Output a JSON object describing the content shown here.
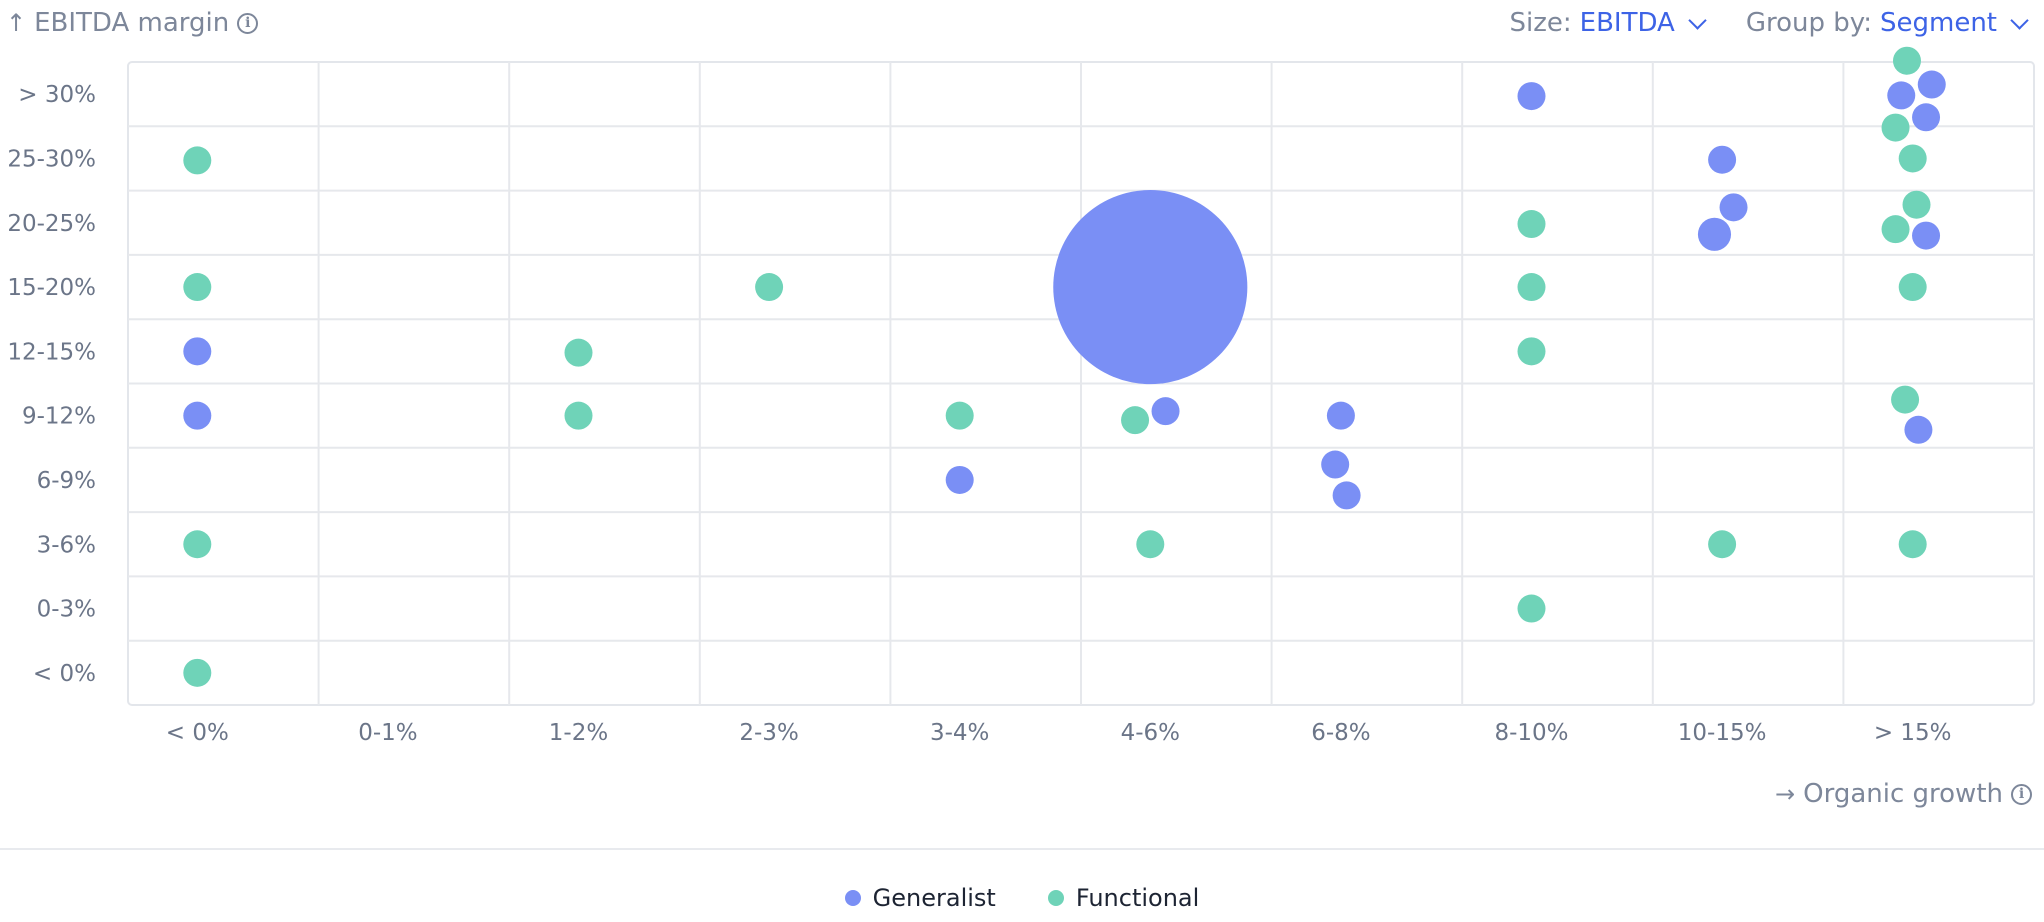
{
  "header": {
    "y_axis_title": "EBITDA margin",
    "size_control": {
      "label": "Size:",
      "value": "EBITDA"
    },
    "group_control": {
      "label": "Group by:",
      "value": "Segment"
    }
  },
  "footer": {
    "x_axis_title": "Organic growth"
  },
  "legend": [
    {
      "name": "Generalist",
      "color": "#7a8ff5"
    },
    {
      "name": "Functional",
      "color": "#6fd3b8"
    }
  ],
  "chart_data": {
    "type": "scatter",
    "xlabel": "Organic growth",
    "ylabel": "EBITDA margin",
    "x_categories": [
      "< 0%",
      "0-1%",
      "1-2%",
      "2-3%",
      "3-4%",
      "4-6%",
      "6-8%",
      "8-10%",
      "10-15%",
      "> 15%"
    ],
    "y_categories": [
      "< 0%",
      "0-3%",
      "3-6%",
      "6-9%",
      "9-12%",
      "12-15%",
      "15-20%",
      "20-25%",
      "25-30%",
      "> 30%"
    ],
    "grid": true,
    "legend_position": "bottom-center",
    "size_by": "EBITDA",
    "group_by": "Segment",
    "series": [
      {
        "name": "Generalist",
        "color": "#7a8ff5",
        "points": [
          {
            "x": "< 0%",
            "y": "12-15%",
            "jx": 0,
            "jy": 0,
            "size": 1
          },
          {
            "x": "< 0%",
            "y": "9-12%",
            "jx": 0,
            "jy": 0,
            "size": 1
          },
          {
            "x": "3-4%",
            "y": "6-9%",
            "jx": 0,
            "jy": 0,
            "size": 1
          },
          {
            "x": "4-6%",
            "y": "15-20%",
            "jx": 0,
            "jy": 0,
            "size": 20
          },
          {
            "x": "4-6%",
            "y": "9-12%",
            "jx": 0.08,
            "jy": 0.07,
            "size": 1
          },
          {
            "x": "6-8%",
            "y": "9-12%",
            "jx": 0,
            "jy": 0,
            "size": 1
          },
          {
            "x": "6-8%",
            "y": "6-9%",
            "jx": -0.03,
            "jy": 0.24,
            "size": 1
          },
          {
            "x": "6-8%",
            "y": "6-9%",
            "jx": 0.03,
            "jy": -0.24,
            "size": 1
          },
          {
            "x": "8-10%",
            "y": "> 30%",
            "jx": 0,
            "jy": -0.03,
            "size": 1
          },
          {
            "x": "10-15%",
            "y": "25-30%",
            "jx": 0,
            "jy": -0.02,
            "size": 1
          },
          {
            "x": "10-15%",
            "y": "20-25%",
            "jx": 0.06,
            "jy": 0.24,
            "size": 1
          },
          {
            "x": "10-15%",
            "y": "20-25%",
            "jx": -0.04,
            "jy": -0.18,
            "size": 1.4
          },
          {
            "x": "> 15%",
            "y": "> 30%",
            "jx": 0.1,
            "jy": 0.15,
            "size": 1
          },
          {
            "x": "> 15%",
            "y": "> 30%",
            "jx": -0.06,
            "jy": -0.02,
            "size": 1
          },
          {
            "x": "> 15%",
            "y": "> 30%",
            "jx": 0.07,
            "jy": -0.36,
            "size": 1
          },
          {
            "x": "> 15%",
            "y": "20-25%",
            "jx": 0.07,
            "jy": -0.2,
            "size": 1
          },
          {
            "x": "> 15%",
            "y": "9-12%",
            "jx": 0.03,
            "jy": -0.22,
            "size": 1
          }
        ]
      },
      {
        "name": "Functional",
        "color": "#6fd3b8",
        "points": [
          {
            "x": "< 0%",
            "y": "25-30%",
            "jx": 0,
            "jy": -0.03,
            "size": 1
          },
          {
            "x": "< 0%",
            "y": "15-20%",
            "jx": 0,
            "jy": 0,
            "size": 1
          },
          {
            "x": "< 0%",
            "y": "3-6%",
            "jx": 0,
            "jy": 0,
            "size": 1
          },
          {
            "x": "< 0%",
            "y": "< 0%",
            "jx": 0,
            "jy": 0,
            "size": 1
          },
          {
            "x": "1-2%",
            "y": "12-15%",
            "jx": 0,
            "jy": -0.02,
            "size": 1
          },
          {
            "x": "1-2%",
            "y": "9-12%",
            "jx": 0,
            "jy": 0,
            "size": 1
          },
          {
            "x": "2-3%",
            "y": "15-20%",
            "jx": 0,
            "jy": 0,
            "size": 1
          },
          {
            "x": "3-4%",
            "y": "9-12%",
            "jx": 0,
            "jy": 0,
            "size": 1
          },
          {
            "x": "4-6%",
            "y": "9-12%",
            "jx": -0.08,
            "jy": -0.07,
            "size": 1
          },
          {
            "x": "4-6%",
            "y": "3-6%",
            "jx": 0,
            "jy": 0,
            "size": 1
          },
          {
            "x": "8-10%",
            "y": "20-25%",
            "jx": 0,
            "jy": -0.02,
            "size": 1
          },
          {
            "x": "8-10%",
            "y": "15-20%",
            "jx": 0,
            "jy": 0,
            "size": 1
          },
          {
            "x": "8-10%",
            "y": "12-15%",
            "jx": 0,
            "jy": 0,
            "size": 1
          },
          {
            "x": "8-10%",
            "y": "0-3%",
            "jx": 0,
            "jy": 0,
            "size": 1
          },
          {
            "x": "10-15%",
            "y": "3-6%",
            "jx": 0,
            "jy": 0,
            "size": 1
          },
          {
            "x": "> 15%",
            "y": "> 30%",
            "jx": -0.03,
            "jy": 0.52,
            "size": 1
          },
          {
            "x": "> 15%",
            "y": "> 30%",
            "jx": -0.09,
            "jy": -0.52,
            "size": 1
          },
          {
            "x": "> 15%",
            "y": "25-30%",
            "jx": 0,
            "jy": 0,
            "size": 1
          },
          {
            "x": "> 15%",
            "y": "20-25%",
            "jx": 0.02,
            "jy": 0.28,
            "size": 1
          },
          {
            "x": "> 15%",
            "y": "20-25%",
            "jx": -0.09,
            "jy": -0.1,
            "size": 1
          },
          {
            "x": "> 15%",
            "y": "15-20%",
            "jx": 0,
            "jy": 0,
            "size": 1
          },
          {
            "x": "> 15%",
            "y": "9-12%",
            "jx": -0.04,
            "jy": 0.25,
            "size": 1
          },
          {
            "x": "> 15%",
            "y": "3-6%",
            "jx": 0,
            "jy": 0,
            "size": 1
          }
        ]
      }
    ]
  }
}
